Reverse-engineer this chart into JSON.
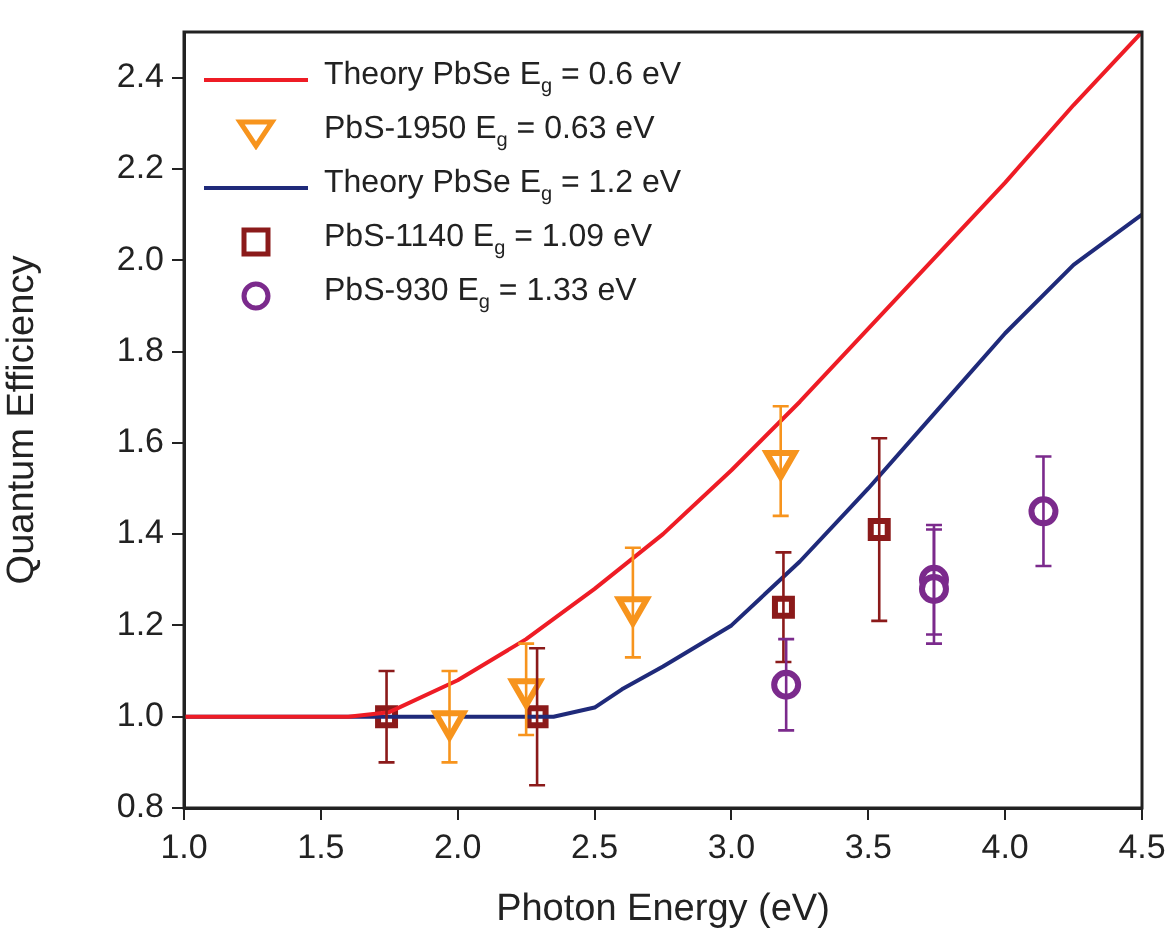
{
  "chart_data": {
    "type": "scatter",
    "xlabel": "Photon Energy (eV)",
    "ylabel": "Quantum Efficiency",
    "xlim": [
      1.0,
      4.5
    ],
    "ylim": [
      0.8,
      2.5
    ],
    "xticks": [
      {
        "value": 1,
        "label": "1.0"
      },
      1.5,
      {
        "value": 2,
        "label": "2.0"
      },
      2.5,
      {
        "value": 3,
        "label": "3.0"
      },
      3.5,
      {
        "value": 4,
        "label": "4.0"
      },
      4.5
    ],
    "yticks": [
      0.8,
      {
        "value": 1,
        "label": "1.0"
      },
      1.2,
      1.4,
      1.6,
      1.8,
      {
        "value": 2,
        "label": "2.0"
      },
      2.2,
      2.4
    ],
    "grid": false,
    "legend": "top left",
    "series": [
      {
        "name": "Theory PbSe E$_{g}$ = 0.6 eV",
        "type": "line",
        "color": "#ee1c25",
        "marker": "none",
        "x": [
          1.0,
          1.5,
          1.6,
          1.75,
          2.0,
          2.25,
          2.5,
          2.75,
          3.0,
          3.25,
          3.5,
          3.75,
          4.0,
          4.25,
          4.5
        ],
        "values": [
          1.0,
          1.0,
          1.0,
          1.01,
          1.08,
          1.17,
          1.28,
          1.4,
          1.54,
          1.69,
          1.85,
          2.01,
          2.17,
          2.34,
          2.5
        ]
      },
      {
        "name": "PbS-1950 E$_{g}$ = 0.63 eV",
        "type": "scatter",
        "color": "#f7941d",
        "marker": "triangle",
        "x": [
          1.97,
          2.25,
          2.64,
          3.18
        ],
        "values": [
          0.99,
          1.06,
          1.24,
          1.56
        ],
        "errors": [
          [
            0.9,
            1.1
          ],
          [
            0.96,
            1.16
          ],
          [
            1.13,
            1.37
          ],
          [
            1.44,
            1.68
          ]
        ]
      },
      {
        "name": "Theory PbSe E$_{g}$ = 1.2 eV",
        "type": "line",
        "color": "#1f2a7a",
        "marker": "none",
        "x": [
          1.0,
          2.35,
          2.5,
          2.6,
          2.75,
          3.0,
          3.25,
          3.5,
          3.75,
          4.0,
          4.25,
          4.5
        ],
        "values": [
          1.0,
          1.0,
          1.02,
          1.06,
          1.11,
          1.2,
          1.34,
          1.5,
          1.67,
          1.84,
          1.99,
          2.1
        ]
      },
      {
        "name": "PbS-1140 E$_{g}$ = 1.09 eV",
        "type": "scatter",
        "color": "#8b1a1a",
        "marker": "square",
        "x": [
          1.74,
          2.29,
          3.19,
          3.54
        ],
        "values": [
          1.0,
          1.0,
          1.24,
          1.41
        ],
        "errors": [
          [
            0.9,
            1.1
          ],
          [
            0.85,
            1.15
          ],
          [
            1.12,
            1.36
          ],
          [
            1.21,
            1.61
          ]
        ]
      },
      {
        "name": "PbS-930 E$_{g}$ = 1.33 eV",
        "type": "scatter",
        "color": "#7b2a8c",
        "marker": "circle",
        "x": [
          3.2,
          3.74,
          3.74,
          4.14
        ],
        "values": [
          1.07,
          1.3,
          1.28,
          1.45
        ],
        "errors": [
          [
            0.97,
            1.17
          ],
          [
            1.18,
            1.42
          ],
          [
            1.16,
            1.41
          ],
          [
            1.33,
            1.57
          ]
        ]
      }
    ]
  }
}
